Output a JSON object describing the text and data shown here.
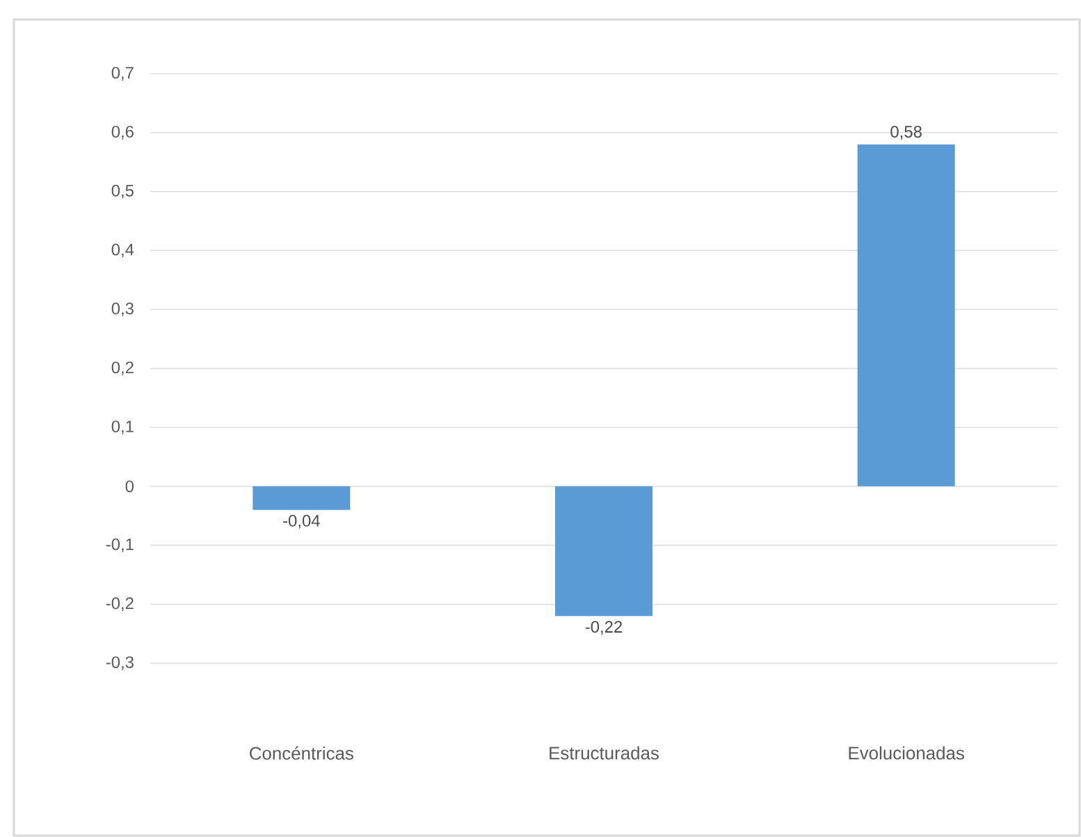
{
  "chart_data": {
    "type": "bar",
    "categories": [
      "Concéntricas",
      "Estructuradas",
      "Evolucionadas"
    ],
    "values": [
      -0.04,
      -0.22,
      0.58
    ],
    "value_labels": [
      "-0,04",
      "-0,22",
      "0,58"
    ],
    "color": "#5b9bd5",
    "ylim": [
      -0.3,
      0.7
    ],
    "yticks": [
      {
        "value": -0.3,
        "label": "-0,3"
      },
      {
        "value": -0.2,
        "label": "-0,2"
      },
      {
        "value": -0.1,
        "label": "-0,1"
      },
      0,
      {
        "value": 0.1,
        "label": "0,1"
      },
      {
        "value": 0.2,
        "label": "0,2"
      },
      {
        "value": 0.3,
        "label": "0,3"
      },
      {
        "value": 0.4,
        "label": "0,4"
      },
      {
        "value": 0.5,
        "label": "0,5"
      },
      {
        "value": 0.6,
        "label": "0,6"
      },
      {
        "value": 0.7,
        "label": "0,7"
      }
    ],
    "grid": "y"
  }
}
